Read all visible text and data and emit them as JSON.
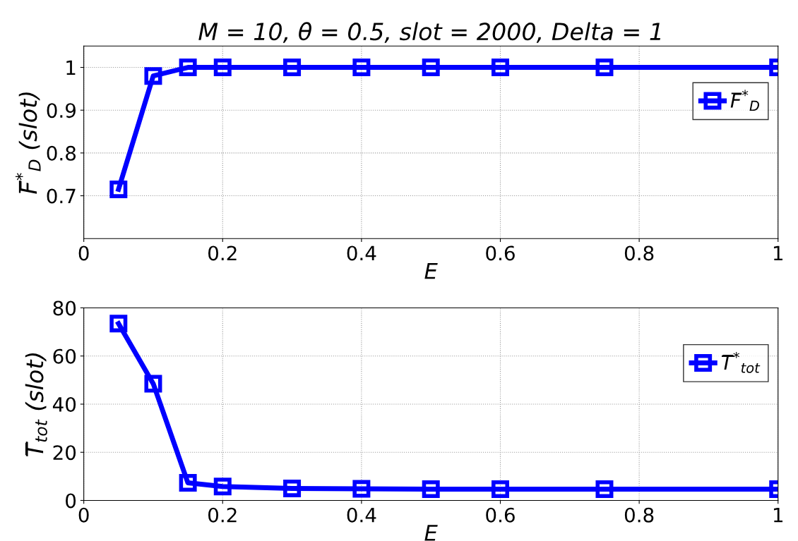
{
  "chart_data": [
    {
      "type": "line",
      "title": "M = 10, θ = 0.5, slot = 2000, Delta = 1",
      "xlabel": "E",
      "ylabel": "F̅$^{*}$$_{D}$ (slot)",
      "x": [
        0.05,
        0.1,
        0.15,
        0.2,
        0.3,
        0.4,
        0.5,
        0.6,
        0.75,
        1.0
      ],
      "series": [
        {
          "name": "F̅$^{*}$$_{D}$",
          "color": "#0000ff",
          "values": [
            0.715,
            0.98,
            1,
            1,
            1,
            1,
            1,
            1,
            1,
            1
          ]
        }
      ],
      "xlim": [
        0,
        1
      ],
      "xticks": [
        0,
        0.2,
        0.4,
        0.6,
        0.8,
        1
      ],
      "ylim": [
        0.6,
        1.05
      ],
      "yticks": [
        0.7,
        0.8,
        0.9,
        1
      ],
      "grid": true,
      "legend": "top right",
      "marker": "square",
      "line_style": "solid"
    },
    {
      "type": "line",
      "xlabel": "E",
      "ylabel": "T̅$_{tot}$ (slot)",
      "x": [
        0.05,
        0.1,
        0.15,
        0.2,
        0.3,
        0.4,
        0.5,
        0.6,
        0.75,
        1.0
      ],
      "series": [
        {
          "name": "T̅$^{*}$$_{tot}$",
          "color": "#0000ff",
          "values": [
            73.5,
            48.5,
            7.3,
            5.8,
            5.0,
            4.8,
            4.7,
            4.7,
            4.7,
            4.7
          ]
        }
      ],
      "xlim": [
        0,
        1
      ],
      "xticks": [
        0,
        0.2,
        0.4,
        0.6,
        0.8,
        1
      ],
      "ylim": [
        0,
        80
      ],
      "yticks": [
        0,
        20,
        40,
        60,
        80
      ],
      "grid": true,
      "legend": "top right",
      "marker": "square",
      "line_style": "solid"
    }
  ]
}
